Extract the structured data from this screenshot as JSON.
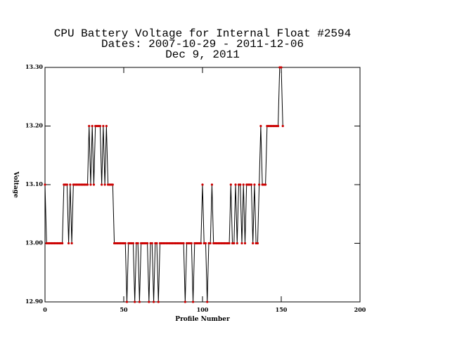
{
  "chart_data": {
    "type": "line",
    "title": "CPU Battery Voltage for Internal Float #2594",
    "subtitle": "Dates:  2007-10-29 -  2011-12-06",
    "date": "Dec  9, 2011",
    "xlabel": "Profile Number",
    "ylabel": "Voltage",
    "xlim": [
      0,
      200
    ],
    "xticks": [
      0,
      50,
      100,
      150,
      200
    ],
    "ylim": [
      12.9,
      13.3
    ],
    "yticks": [
      {
        "value": 12.9,
        "label": "12.90"
      },
      {
        "value": 13.0,
        "label": "13.00"
      },
      {
        "value": 13.1,
        "label": "13.10"
      },
      {
        "value": 13.2,
        "label": "13.20"
      },
      {
        "value": 13.3,
        "label": "13.30"
      }
    ],
    "series": [
      {
        "line_color": "#000000",
        "color": "#cc0000",
        "x": [
          0,
          1,
          2,
          3,
          4,
          5,
          6,
          7,
          8,
          9,
          10,
          11,
          12,
          13,
          14,
          15,
          16,
          17,
          18,
          19,
          20,
          21,
          22,
          23,
          24,
          25,
          26,
          27,
          28,
          29,
          30,
          31,
          32,
          33,
          34,
          35,
          36,
          37,
          38,
          39,
          40,
          41,
          42,
          43,
          44,
          45,
          46,
          47,
          48,
          49,
          50,
          51,
          52,
          53,
          54,
          55,
          56,
          57,
          58,
          59,
          60,
          61,
          62,
          63,
          64,
          65,
          66,
          67,
          68,
          69,
          70,
          71,
          72,
          73,
          74,
          75,
          76,
          77,
          78,
          79,
          80,
          81,
          82,
          83,
          84,
          85,
          86,
          87,
          88,
          89,
          90,
          91,
          92,
          93,
          94,
          95,
          96,
          97,
          98,
          99,
          100,
          101,
          102,
          103,
          104,
          105,
          106,
          107,
          108,
          109,
          110,
          111,
          112,
          113,
          114,
          115,
          116,
          117,
          118,
          119,
          120,
          121,
          122,
          123,
          124,
          125,
          126,
          127,
          128,
          129,
          130,
          131,
          132,
          133,
          134,
          135,
          136,
          137,
          138,
          139,
          140,
          141,
          142,
          143,
          144,
          145,
          146,
          147,
          148,
          149,
          150,
          151
        ],
        "values": [
          13.1,
          13.0,
          13.0,
          13.0,
          13.0,
          13.0,
          13.0,
          13.0,
          13.0,
          13.0,
          13.0,
          13.0,
          13.1,
          13.1,
          13.1,
          13.0,
          13.1,
          13.0,
          13.1,
          13.1,
          13.1,
          13.1,
          13.1,
          13.1,
          13.1,
          13.1,
          13.1,
          13.1,
          13.2,
          13.1,
          13.2,
          13.1,
          13.2,
          13.2,
          13.2,
          13.2,
          13.1,
          13.2,
          13.1,
          13.2,
          13.1,
          13.1,
          13.1,
          13.1,
          13.0,
          13.0,
          13.0,
          13.0,
          13.0,
          13.0,
          13.0,
          13.0,
          12.9,
          13.0,
          13.0,
          13.0,
          13.0,
          12.9,
          13.0,
          13.0,
          12.9,
          13.0,
          13.0,
          13.0,
          13.0,
          13.0,
          12.9,
          13.0,
          13.0,
          12.9,
          13.0,
          13.0,
          12.9,
          13.0,
          13.0,
          13.0,
          13.0,
          13.0,
          13.0,
          13.0,
          13.0,
          13.0,
          13.0,
          13.0,
          13.0,
          13.0,
          13.0,
          13.0,
          13.0,
          12.9,
          13.0,
          13.0,
          13.0,
          13.0,
          12.9,
          13.0,
          13.0,
          13.0,
          13.0,
          13.0,
          13.1,
          13.0,
          13.0,
          12.9,
          13.0,
          13.0,
          13.1,
          13.0,
          13.0,
          13.0,
          13.0,
          13.0,
          13.0,
          13.0,
          13.0,
          13.0,
          13.0,
          13.0,
          13.1,
          13.0,
          13.0,
          13.1,
          13.0,
          13.1,
          13.1,
          13.0,
          13.1,
          13.0,
          13.1,
          13.1,
          13.1,
          13.1,
          13.0,
          13.1,
          13.0,
          13.0,
          13.1,
          13.2,
          13.1,
          13.1,
          13.1,
          13.2,
          13.2,
          13.2,
          13.2,
          13.2,
          13.2,
          13.2,
          13.2,
          13.3,
          13.3,
          13.2
        ]
      }
    ]
  }
}
